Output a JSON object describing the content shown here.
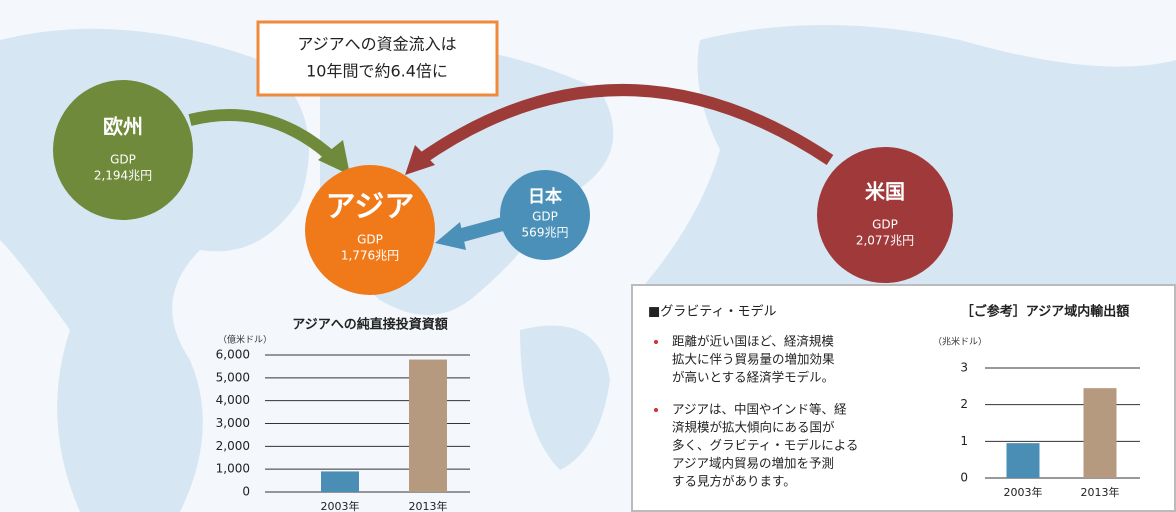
{
  "callout": [
    "アジアへの資金流入は",
    "10年間で約6.4倍に"
  ],
  "regions": [
    {
      "name": "欧州",
      "label": "GDP",
      "value": "2,194兆円"
    },
    {
      "name": "アジア",
      "label": "GDP",
      "value": "1,776兆円"
    },
    {
      "name": "日本",
      "label": "GDP",
      "value": "569兆円"
    },
    {
      "name": "米国",
      "label": "GDP",
      "value": "2,077兆円"
    }
  ],
  "model": {
    "title": "■グラビティ・モデル",
    "bullets": [
      [
        "距離が近い国ほど、経済規模",
        "拡大に伴う貿易量の増加効果",
        "が高いとする経済学モデル。"
      ],
      [
        "アジアは、中国やインド等、経",
        "済規模が拡大傾向にある国が",
        "多く、グラビティ・モデルによる",
        "アジア域内貿易の増加を予測",
        "する見方があります。"
      ]
    ]
  },
  "chart_data": [
    {
      "type": "bar",
      "title": "アジアへの純直接投資資額",
      "y_label": "（億米ドル）",
      "categories": [
        "2003年",
        "2013年"
      ],
      "values": [
        900,
        5800
      ],
      "colors": [
        "#4a8db5",
        "#b59a80"
      ],
      "ylim": [
        0,
        6000
      ],
      "yticks": [
        0,
        {
          "value": 1000,
          "label": "1,000"
        },
        {
          "value": 2000,
          "label": "2,000"
        },
        {
          "value": 3000,
          "label": "3,000"
        },
        {
          "value": 4000,
          "label": "4,000"
        },
        {
          "value": 5000,
          "label": "5,000"
        },
        {
          "value": 6000,
          "label": "6,000"
        }
      ],
      "grid": true
    },
    {
      "type": "bar",
      "title": "［ご参考］アジア域内輸出額",
      "y_label": "（兆米ドル）",
      "categories": [
        "2003年",
        "2013年"
      ],
      "values": [
        0.95,
        2.45
      ],
      "colors": [
        "#4a8db5",
        "#b59a80"
      ],
      "ylim": [
        0,
        3
      ],
      "yticks": [
        0,
        1,
        2,
        3
      ],
      "grid": true
    }
  ]
}
